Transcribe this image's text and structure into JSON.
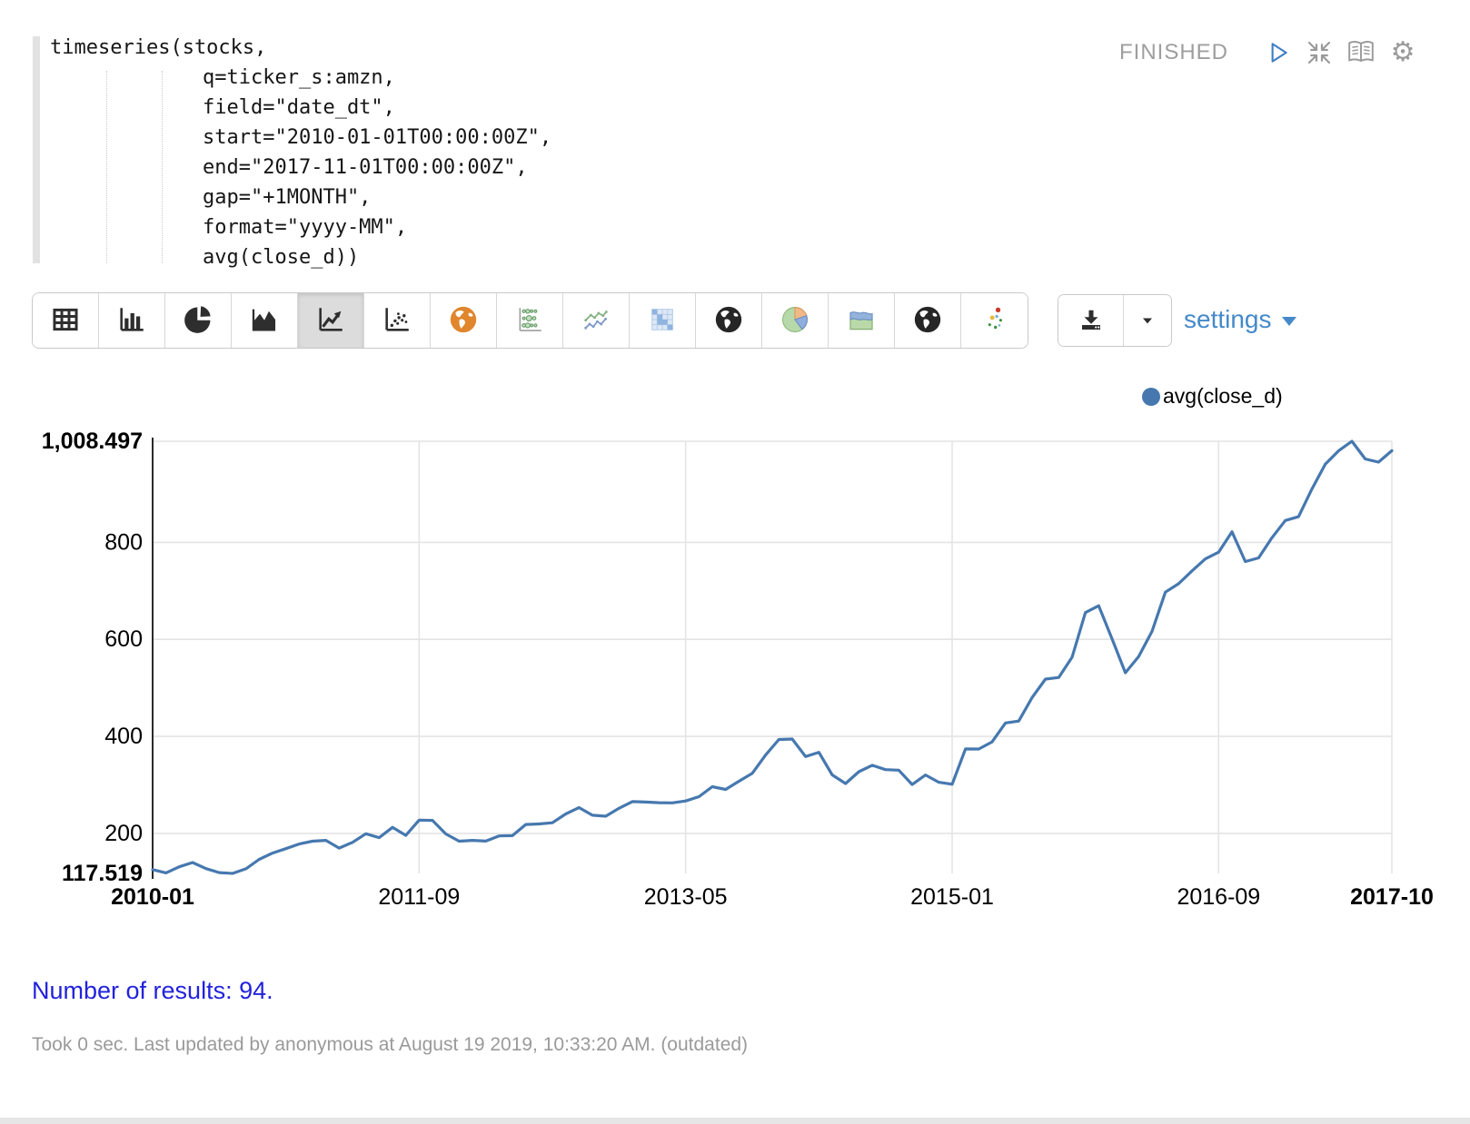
{
  "paragraph": {
    "status": "FINISHED",
    "code_lines": [
      "timeseries(stocks,",
      "q=ticker_s:amzn,",
      "field=\"date_dt\",",
      "start=\"2010-01-01T00:00:00Z\",",
      "end=\"2017-11-01T00:00:00Z\",",
      "gap=\"+1MONTH\",",
      "format=\"yyyy-MM\",",
      "avg(close_d))"
    ],
    "controls": [
      {
        "icon": "play-icon"
      },
      {
        "icon": "shrink-icon"
      },
      {
        "icon": "book-icon"
      },
      {
        "icon": "gear-icon"
      }
    ]
  },
  "toolbar": {
    "buttons": [
      {
        "name": "table",
        "icon": "table-icon",
        "selected": false
      },
      {
        "name": "bar-chart",
        "icon": "bar-chart-icon",
        "selected": false
      },
      {
        "name": "pie-chart",
        "icon": "pie-chart-icon",
        "selected": false
      },
      {
        "name": "area-chart",
        "icon": "area-chart-icon",
        "selected": false
      },
      {
        "name": "line-chart",
        "icon": "line-chart-icon",
        "selected": true
      },
      {
        "name": "scatter-plot",
        "icon": "scatter-icon",
        "selected": false
      },
      {
        "name": "map-orange",
        "icon": "globe-orange-icon",
        "selected": false
      },
      {
        "name": "bubble-matrix",
        "icon": "bubble-matrix-icon",
        "selected": false
      },
      {
        "name": "multi-line-chart",
        "icon": "multi-line-icon",
        "selected": false
      },
      {
        "name": "heatmap",
        "icon": "heatmap-icon",
        "selected": false
      },
      {
        "name": "globe-map",
        "icon": "globe-dark-icon",
        "selected": false
      },
      {
        "name": "pie-colored",
        "icon": "pie-colored-icon",
        "selected": false
      },
      {
        "name": "stacked-area",
        "icon": "stacked-area-icon",
        "selected": false
      },
      {
        "name": "globe-map-2",
        "icon": "globe-dark-icon",
        "selected": false
      },
      {
        "name": "colored-scatter",
        "icon": "colored-scatter-icon",
        "selected": false
      }
    ]
  },
  "export": {
    "download_icon": "download-icon",
    "caret_icon": "caret-down-icon"
  },
  "settings": {
    "label": "settings"
  },
  "legend": {
    "series_label": "avg(close_d)",
    "color": "#4678af"
  },
  "chart_data": {
    "type": "line",
    "title": "",
    "xlabel": "",
    "ylabel": "",
    "series_name": "avg(close_d)",
    "line_color": "#4678af",
    "grid": true,
    "legend_position": "top-right",
    "ylim": [
      117.519,
      1008.497
    ],
    "y_ticks": [
      {
        "value": 1008.497,
        "label": "1,008.497",
        "bold": true
      },
      {
        "value": 800,
        "label": "800",
        "bold": false
      },
      {
        "value": 600,
        "label": "600",
        "bold": false
      },
      {
        "value": 400,
        "label": "400",
        "bold": false
      },
      {
        "value": 200,
        "label": "200",
        "bold": false
      },
      {
        "value": 117.519,
        "label": "117.519",
        "bold": true
      }
    ],
    "x_ticks": [
      {
        "index": 0,
        "label": "2010-01",
        "bold": true
      },
      {
        "index": 20,
        "label": "2011-09",
        "bold": false
      },
      {
        "index": 40,
        "label": "2013-05",
        "bold": false
      },
      {
        "index": 60,
        "label": "2015-01",
        "bold": false
      },
      {
        "index": 80,
        "label": "2016-09",
        "bold": false
      },
      {
        "index": 93,
        "label": "2017-10",
        "bold": true
      }
    ],
    "x": [
      "2010-01",
      "2010-02",
      "2010-03",
      "2010-04",
      "2010-05",
      "2010-06",
      "2010-07",
      "2010-08",
      "2010-09",
      "2010-10",
      "2010-11",
      "2010-12",
      "2011-01",
      "2011-02",
      "2011-03",
      "2011-04",
      "2011-05",
      "2011-06",
      "2011-07",
      "2011-08",
      "2011-09",
      "2011-10",
      "2011-11",
      "2011-12",
      "2012-01",
      "2012-02",
      "2012-03",
      "2012-04",
      "2012-05",
      "2012-06",
      "2012-07",
      "2012-08",
      "2012-09",
      "2012-10",
      "2012-11",
      "2012-12",
      "2013-01",
      "2013-02",
      "2013-03",
      "2013-04",
      "2013-05",
      "2013-06",
      "2013-07",
      "2013-08",
      "2013-09",
      "2013-10",
      "2013-11",
      "2013-12",
      "2014-01",
      "2014-02",
      "2014-03",
      "2014-04",
      "2014-05",
      "2014-06",
      "2014-07",
      "2014-08",
      "2014-09",
      "2014-10",
      "2014-11",
      "2014-12",
      "2015-01",
      "2015-02",
      "2015-03",
      "2015-04",
      "2015-05",
      "2015-06",
      "2015-07",
      "2015-08",
      "2015-09",
      "2015-10",
      "2015-11",
      "2015-12",
      "2016-01",
      "2016-02",
      "2016-03",
      "2016-04",
      "2016-05",
      "2016-06",
      "2016-07",
      "2016-08",
      "2016-09",
      "2016-10",
      "2016-11",
      "2016-12",
      "2017-01",
      "2017-02",
      "2017-03",
      "2017-04",
      "2017-05",
      "2017-06",
      "2017-07",
      "2017-08",
      "2017-09",
      "2017-10"
    ],
    "values": [
      125.4,
      118.6,
      131.1,
      140.0,
      127.5,
      119.2,
      117.519,
      127.0,
      146.5,
      159.5,
      168.6,
      178.2,
      184.0,
      185.6,
      169.7,
      181.6,
      199.4,
      191.3,
      212.5,
      195.9,
      227.4,
      226.8,
      199.0,
      183.9,
      185.6,
      184.2,
      194.9,
      195.3,
      218.4,
      219.5,
      222.0,
      240.2,
      253.2,
      237.5,
      235.5,
      251.8,
      265.6,
      264.7,
      263.4,
      262.9,
      266.8,
      275.7,
      296.3,
      290.6,
      307.6,
      323.7,
      361.6,
      393.6,
      394.5,
      358.4,
      367.2,
      320.6,
      302.9,
      327.1,
      340.5,
      331.4,
      330.4,
      300.8,
      320.4,
      305.5,
      301.4,
      374.1,
      374.0,
      388.7,
      427.6,
      431.6,
      480.0,
      518.1,
      521.5,
      563.2,
      655.2,
      669.3,
      601.1,
      531.1,
      564.7,
      616.5,
      697.4,
      714.9,
      741.2,
      765.9,
      779.7,
      821.9,
      760.4,
      767.9,
      809.5,
      845.1,
      853.0,
      910.1,
      961.1,
      988.6,
      1008.497,
      972.0,
      965.4,
      989.0
    ]
  },
  "results": {
    "text": "Number of results: 94."
  },
  "footer": {
    "text": "Took 0 sec. Last updated by anonymous at August 19 2019, 10:33:20 AM. (outdated)"
  }
}
